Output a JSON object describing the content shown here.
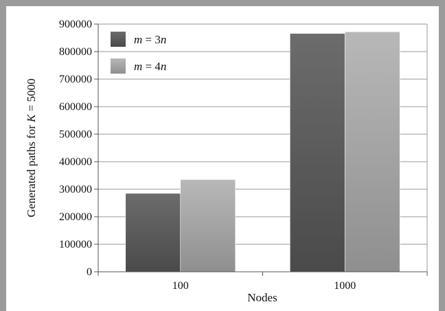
{
  "chart_data": {
    "type": "bar",
    "categories": [
      "100",
      "1000"
    ],
    "series": [
      {
        "name": "m = 3n",
        "legend": {
          "var": "m",
          "eq": " = 3",
          "suffix": "n"
        },
        "values": [
          285000,
          866000
        ],
        "color": "#5e5e5e"
      },
      {
        "name": "m = 4n",
        "legend": {
          "var": "m",
          "eq": " = 4",
          "suffix": "n"
        },
        "values": [
          335000,
          872000
        ],
        "color": "#a8a8a8"
      }
    ],
    "xlabel": "Nodes",
    "ylabel": {
      "prefix": "Generated paths for ",
      "italic": "K",
      "suffix": " = 5000"
    },
    "ylim": [
      0,
      900000
    ],
    "yticks": [
      "0",
      "100000",
      "200000",
      "300000",
      "400000",
      "500000",
      "600000",
      "700000",
      "800000",
      "900000"
    ],
    "grid": true,
    "legend_position": "top-left"
  }
}
